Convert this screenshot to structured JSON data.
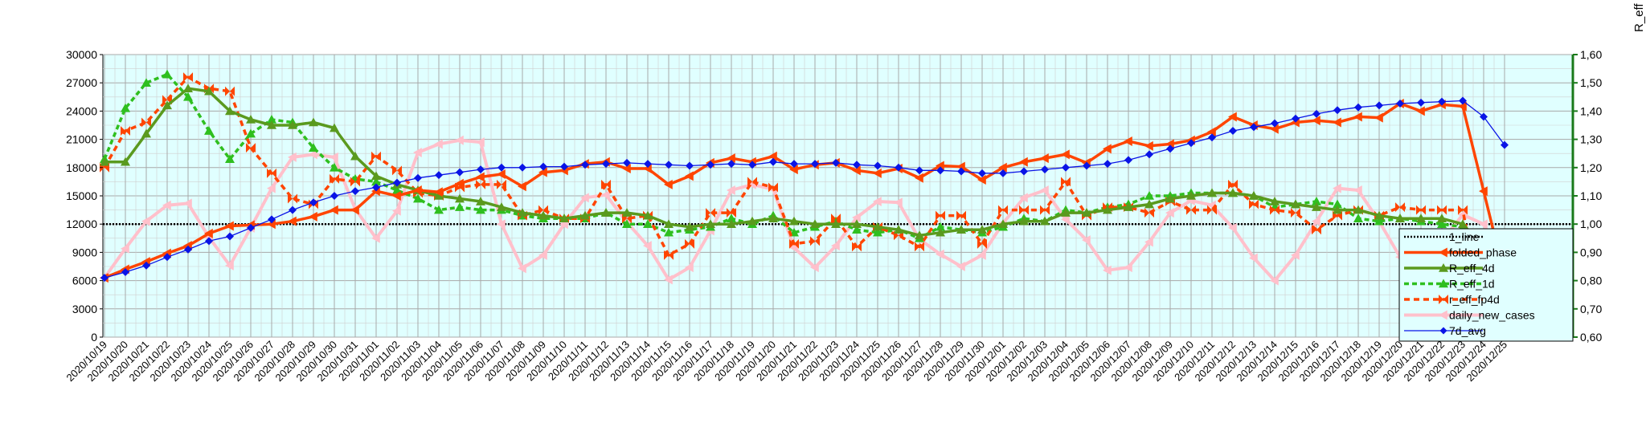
{
  "chart_data": {
    "type": "line",
    "title": "",
    "xlabel": "",
    "ylabel": "",
    "y2label": "R_eff",
    "ylim": [
      0,
      30000
    ],
    "y2lim": [
      0.6,
      1.6
    ],
    "yticks": [
      "0",
      "3000",
      "6000",
      "9000",
      "12000",
      "15000",
      "18000",
      "21000",
      "24000",
      "27000",
      "30000"
    ],
    "y2ticks": [
      "0,60",
      "0,70",
      "0,80",
      "0,90",
      "1,00",
      "1,10",
      "1,20",
      "1,30",
      "1,40",
      "1,50",
      "1,60"
    ],
    "plot_background": "#e0ffff",
    "grid": true,
    "legend_position": "bottom-right",
    "categories": [
      "2020/10/19",
      "2020/10/20",
      "2020/10/21",
      "2020/10/22",
      "2020/10/23",
      "2020/10/24",
      "2020/10/25",
      "2020/10/26",
      "2020/10/27",
      "2020/10/28",
      "2020/10/29",
      "2020/10/30",
      "2020/10/31",
      "2020/11/01",
      "2020/11/02",
      "2020/11/03",
      "2020/11/04",
      "2020/11/05",
      "2020/11/06",
      "2020/11/07",
      "2020/11/08",
      "2020/11/09",
      "2020/11/10",
      "2020/11/11",
      "2020/11/12",
      "2020/11/13",
      "2020/11/14",
      "2020/11/15",
      "2020/11/16",
      "2020/11/17",
      "2020/11/18",
      "2020/11/19",
      "2020/11/20",
      "2020/11/21",
      "2020/11/22",
      "2020/11/23",
      "2020/11/24",
      "2020/11/25",
      "2020/11/26",
      "2020/11/27",
      "2020/11/28",
      "2020/11/29",
      "2020/11/30",
      "2020/12/01",
      "2020/12/02",
      "2020/12/03",
      "2020/12/04",
      "2020/12/05",
      "2020/12/06",
      "2020/12/07",
      "2020/12/08",
      "2020/12/09",
      "2020/12/10",
      "2020/12/11",
      "2020/12/12",
      "2020/12/13",
      "2020/12/14",
      "2020/12/15",
      "2020/12/16",
      "2020/12/17",
      "2020/12/18",
      "2020/12/19",
      "2020/12/20",
      "2020/12/21",
      "2020/12/22",
      "2020/12/23",
      "2020/12/24",
      "2020/12/25"
    ],
    "series": [
      {
        "name": "1_line",
        "axis": "right",
        "color": "#000000",
        "dash": "2,2",
        "width": 2.5,
        "marker": "none",
        "values": [
          1,
          1,
          1,
          1,
          1,
          1,
          1,
          1,
          1,
          1,
          1,
          1,
          1,
          1,
          1,
          1,
          1,
          1,
          1,
          1,
          1,
          1,
          1,
          1,
          1,
          1,
          1,
          1,
          1,
          1,
          1,
          1,
          1,
          1,
          1,
          1,
          1,
          1,
          1,
          1,
          1,
          1,
          1,
          1,
          1,
          1,
          1,
          1,
          1,
          1,
          1,
          1,
          1,
          1,
          1,
          1,
          1,
          1,
          1,
          1,
          1,
          1,
          1,
          1,
          1,
          1,
          1,
          1
        ]
      },
      {
        "name": "folded_phase",
        "axis": "left",
        "color": "#ff4500",
        "dash": "",
        "width": 3.5,
        "marker": "tri-left",
        "values": [
          6300,
          7200,
          8000,
          8900,
          9700,
          11000,
          11800,
          11900,
          12000,
          12300,
          12800,
          13500,
          13500,
          15500,
          15000,
          15600,
          15400,
          16300,
          17000,
          17300,
          16000,
          17500,
          17700,
          18400,
          18600,
          17900,
          17900,
          16200,
          17100,
          18500,
          19000,
          18600,
          19200,
          17800,
          18300,
          18500,
          17700,
          17400,
          17900,
          16900,
          18200,
          18100,
          16700,
          18000,
          18600,
          19000,
          19400,
          18500,
          20000,
          20800,
          20300,
          20500,
          20900,
          21800,
          23400,
          22500,
          22100,
          22800,
          23000,
          22800,
          23400,
          23300,
          24800,
          24000,
          24700,
          24500,
          15500,
          6500
        ]
      },
      {
        "name": "R_eff_4d",
        "axis": "right",
        "color": "#5a9a1e",
        "dash": "",
        "width": 3.5,
        "marker": "tri-up",
        "values": [
          1.22,
          1.22,
          1.32,
          1.42,
          1.48,
          1.47,
          1.4,
          1.37,
          1.35,
          1.35,
          1.36,
          1.34,
          1.24,
          1.17,
          1.14,
          1.12,
          1.1,
          1.09,
          1.08,
          1.06,
          1.04,
          1.03,
          1.02,
          1.03,
          1.04,
          1.04,
          1.03,
          1.0,
          0.99,
          1.0,
          1.0,
          1.01,
          1.02,
          1.01,
          1.0,
          1.0,
          1.0,
          0.99,
          0.98,
          0.96,
          0.97,
          0.98,
          0.98,
          1.0,
          1.01,
          1.01,
          1.04,
          1.04,
          1.05,
          1.06,
          1.07,
          1.09,
          1.1,
          1.11,
          1.11,
          1.1,
          1.08,
          1.07,
          1.06,
          1.05,
          1.05,
          1.03,
          1.02,
          1.02,
          1.02,
          1.0,
          0.92,
          0.84
        ]
      },
      {
        "name": "R_eff_1d",
        "axis": "right",
        "color": "#2fbf1f",
        "dash": "6,4",
        "width": 3.5,
        "marker": "tri-up",
        "values": [
          1.23,
          1.41,
          1.5,
          1.53,
          1.45,
          1.33,
          1.23,
          1.32,
          1.37,
          1.36,
          1.27,
          1.2,
          1.16,
          1.15,
          1.12,
          1.09,
          1.05,
          1.06,
          1.05,
          1.05,
          1.03,
          1.02,
          1.02,
          1.02,
          1.04,
          1.0,
          1.0,
          0.97,
          0.98,
          0.99,
          1.02,
          1.0,
          1.03,
          0.97,
          0.99,
          1.01,
          0.98,
          0.97,
          0.98,
          0.95,
          0.99,
          0.98,
          0.97,
          0.99,
          1.02,
          1.01,
          1.05,
          1.04,
          1.06,
          1.07,
          1.1,
          1.1,
          1.11,
          1.11,
          1.11,
          1.1,
          1.06,
          1.07,
          1.08,
          1.07,
          1.02,
          1.01,
          1.02,
          1.01,
          1.0,
          0.99,
          0.79,
          0.74
        ]
      },
      {
        "name": "r_eff_fp4d",
        "axis": "right",
        "color": "#ff4500",
        "dash": "7,5",
        "width": 3.5,
        "marker": "x",
        "values": [
          1.2,
          1.33,
          1.36,
          1.44,
          1.52,
          1.48,
          1.47,
          1.27,
          1.18,
          1.09,
          1.07,
          1.16,
          1.15,
          1.24,
          1.19,
          1.11,
          1.1,
          1.13,
          1.14,
          1.14,
          1.03,
          1.05,
          1.02,
          1.02,
          1.14,
          1.02,
          1.03,
          0.89,
          0.93,
          1.04,
          1.04,
          1.15,
          1.13,
          0.93,
          0.94,
          1.02,
          0.92,
          0.99,
          0.96,
          0.92,
          1.03,
          1.03,
          0.93,
          1.05,
          1.05,
          1.05,
          1.15,
          1.03,
          1.06,
          1.06,
          1.04,
          1.08,
          1.05,
          1.05,
          1.14,
          1.07,
          1.05,
          1.04,
          0.98,
          1.03,
          1.05,
          1.03,
          1.06,
          1.05,
          1.05,
          1.05,
          0.66,
          0.61
        ]
      },
      {
        "name": "daily_new_cases",
        "axis": "left",
        "color": "#ffc0cb",
        "dash": "",
        "width": 4,
        "marker": "tri-left",
        "values": [
          6300,
          9400,
          12300,
          14000,
          14200,
          10600,
          7600,
          11600,
          15800,
          19100,
          19400,
          19100,
          13600,
          10500,
          13400,
          19600,
          20500,
          20900,
          20700,
          12000,
          7300,
          8700,
          12000,
          14800,
          15100,
          12200,
          9700,
          6100,
          7400,
          11300,
          15600,
          16200,
          15700,
          9500,
          7400,
          9700,
          12700,
          14400,
          14300,
          10400,
          8800,
          7500,
          8700,
          12100,
          14800,
          15600,
          12500,
          10300,
          7100,
          7400,
          10100,
          13200,
          14500,
          14000,
          11600,
          8400,
          6000,
          8700,
          12300,
          15800,
          15600,
          12300,
          8500,
          5200,
          10200,
          13000,
          12000,
          7400
        ]
      },
      {
        "name": "7d_avg",
        "axis": "left",
        "color": "#0a14e6",
        "dash": "",
        "width": 1.3,
        "marker": "diamond",
        "values": [
          6300,
          6900,
          7600,
          8500,
          9300,
          10200,
          10700,
          11600,
          12500,
          13500,
          14300,
          15000,
          15500,
          15900,
          16400,
          16900,
          17200,
          17500,
          17800,
          18000,
          18000,
          18100,
          18100,
          18300,
          18400,
          18500,
          18400,
          18300,
          18200,
          18300,
          18400,
          18300,
          18600,
          18400,
          18400,
          18500,
          18300,
          18200,
          18000,
          17700,
          17700,
          17600,
          17400,
          17400,
          17600,
          17800,
          18000,
          18200,
          18400,
          18800,
          19400,
          20000,
          20600,
          21200,
          21900,
          22300,
          22700,
          23200,
          23700,
          24100,
          24400,
          24600,
          24800,
          24900,
          25000,
          25100,
          23400,
          20400
        ]
      }
    ]
  }
}
